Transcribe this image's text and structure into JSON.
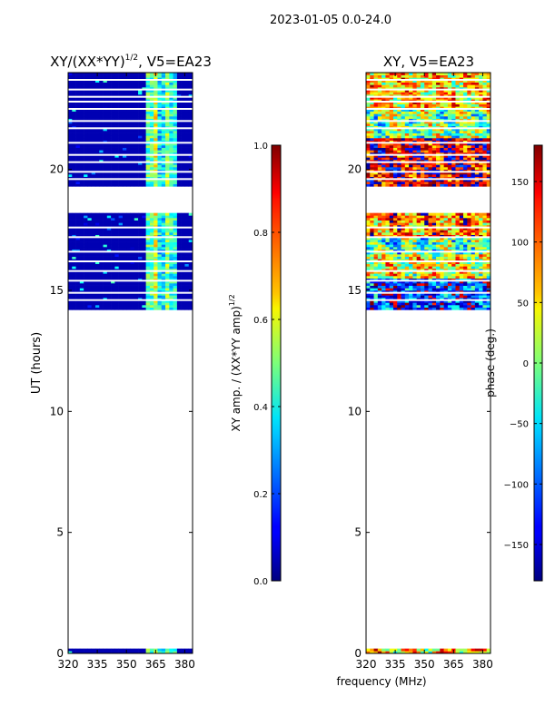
{
  "suptitle": "2023-01-05 0.0-24.0",
  "xlabel_shared": "frequency (MHz)",
  "chart_data": [
    {
      "type": "heatmap",
      "id": "amp",
      "title_base": "XY/(XX*YY)",
      "title_exp": "1/2",
      "title_tail": ", V5=EA23",
      "xlabel": "",
      "ylabel": "UT (hours)",
      "xlim": [
        320,
        384
      ],
      "ylim": [
        0,
        24
      ],
      "x_ticks": [
        320,
        335,
        350,
        365,
        380
      ],
      "y_ticks": [
        0,
        5,
        10,
        15,
        20
      ],
      "colorbar": {
        "label_base": "XY amp. / (XX*YY amp)",
        "label_exp": "1/2",
        "range": [
          0.0,
          1.0
        ],
        "ticks": [
          "0.0",
          "0.2",
          "0.4",
          "0.6",
          "0.8",
          "1.0"
        ],
        "colormap": "jet"
      },
      "data_blocks_hours": [
        [
          0.0,
          0.2
        ],
        [
          14.2,
          18.2
        ],
        [
          19.3,
          24.0
        ]
      ],
      "gap_lines_hours": [
        14.6,
        14.9,
        15.4,
        15.8,
        16.2,
        16.6,
        17.2,
        17.6,
        19.6,
        19.9,
        20.3,
        20.6,
        21.1,
        21.7,
        22.0,
        22.5,
        22.8,
        23.0,
        23.3,
        23.7
      ],
      "background_value": 0.05,
      "bright_band_MHz": [
        360,
        376
      ],
      "bright_band_values": [
        0.45,
        0.6,
        0.35,
        0.5,
        0.4
      ]
    },
    {
      "type": "heatmap",
      "id": "phase",
      "title_base": "XY, V5=EA23",
      "title_exp": "",
      "title_tail": "",
      "xlabel": "frequency (MHz)",
      "ylabel": "",
      "xlim": [
        320,
        384
      ],
      "ylim": [
        0,
        24
      ],
      "x_ticks": [
        320,
        335,
        350,
        365,
        380
      ],
      "y_ticks": [
        0,
        5,
        10,
        15,
        20
      ],
      "colorbar": {
        "label_base": "phase (deg.)",
        "label_exp": "",
        "range": [
          -180,
          180
        ],
        "ticks": [
          "−150",
          "−100",
          "−50",
          "0",
          "50",
          "100",
          "150"
        ],
        "colormap": "jet"
      },
      "data_blocks_hours": [
        [
          0.0,
          0.2
        ],
        [
          14.2,
          18.2
        ],
        [
          19.3,
          24.0
        ]
      ],
      "gap_lines_hours": [
        14.6,
        14.9,
        15.4,
        15.8,
        16.2,
        16.6,
        17.2,
        17.6,
        19.6,
        19.9,
        20.3,
        20.6,
        21.1,
        21.7,
        22.0,
        22.5,
        22.8,
        23.0,
        23.3,
        23.7
      ],
      "phase_bands_deg": [
        {
          "from": 0.0,
          "to": 0.2,
          "value": 60
        },
        {
          "from": 14.2,
          "to": 15.5,
          "value": -120
        },
        {
          "from": 15.5,
          "to": 16.5,
          "value": 40
        },
        {
          "from": 16.5,
          "to": 17.2,
          "value": -20
        },
        {
          "from": 17.2,
          "to": 18.2,
          "value": 90
        },
        {
          "from": 19.3,
          "to": 21.3,
          "value": 150
        },
        {
          "from": 21.3,
          "to": 22.5,
          "value": 0
        },
        {
          "from": 22.5,
          "to": 24.0,
          "value": 60
        }
      ]
    }
  ]
}
